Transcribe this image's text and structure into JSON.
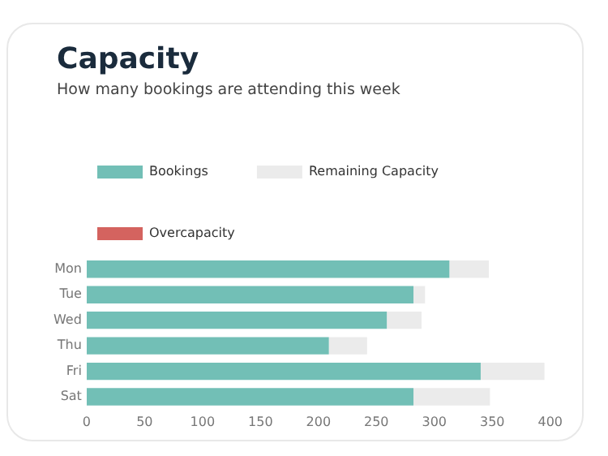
{
  "chart_data": {
    "type": "bar",
    "title": "Capacity",
    "subtitle": "How many bookings are attending this week",
    "orientation": "horizontal",
    "stacked": true,
    "categories": [
      "Mon",
      "Tue",
      "Wed",
      "Thu",
      "Fri",
      "Sat"
    ],
    "series": [
      {
        "name": "Bookings",
        "color": "#72bfb6",
        "values": [
          313,
          282,
          259,
          209,
          340,
          282
        ]
      },
      {
        "name": "Remaining Capacity",
        "color": "#ebebeb",
        "values": [
          34,
          10,
          30,
          33,
          55,
          66
        ]
      },
      {
        "name": "Overcapacity",
        "color": "#d4635f",
        "values": [
          0,
          0,
          0,
          0,
          0,
          0
        ]
      }
    ],
    "xlim": [
      0,
      400
    ],
    "xticks": [
      0,
      50,
      100,
      150,
      200,
      250,
      300,
      350,
      400
    ],
    "grid": false,
    "legend": "top"
  }
}
